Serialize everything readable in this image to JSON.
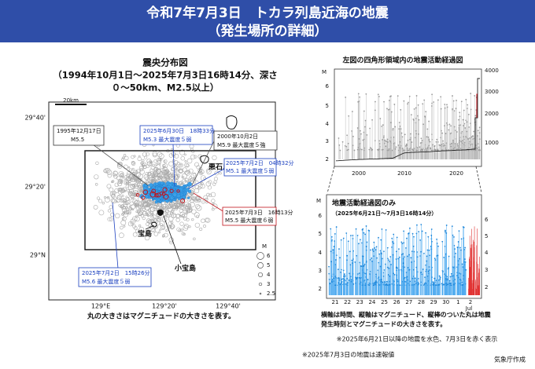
{
  "header": {
    "title": "令和7年7月3日　トカラ列島近海の地震",
    "subtitle": "（発生場所の詳細）"
  },
  "map": {
    "title": [
      "震央分布図",
      "（1994年10月1日～2025年7月3日16時14分、深さ",
      "０～50km、M2.5以上）"
    ],
    "scale": "20km",
    "lat_labels": [
      "29°40'",
      "29°20'",
      "29°N"
    ],
    "lon_labels": [
      "129°E",
      "129°20'",
      "129°40'"
    ],
    "islands": [
      "悪石島",
      "宝島",
      "小宝島"
    ],
    "annotations": [
      {
        "lines": [
          "1995年12月17日",
          "M5.5"
        ]
      },
      {
        "lines": [
          "2025年6月30日　18時33分",
          "M5.3 最大震度５弱"
        ]
      },
      {
        "lines": [
          "2000年10月2日",
          "M5.9 最大震度５強"
        ]
      },
      {
        "lines": [
          "2025年7月2日　04時32分",
          "M5.1 最大震度５弱"
        ]
      },
      {
        "lines": [
          "2025年7月3日　16時13分",
          "M5.5 最大震度６弱"
        ]
      },
      {
        "lines": [
          "2025年7月2日　15時26分",
          "M5.6 最大震度５弱"
        ]
      }
    ],
    "legend_title": "M",
    "legend_labels": [
      "6",
      "5",
      "4",
      "3",
      "2.5"
    ],
    "caption": "丸の大きさはマグニチュードの大きさを表す。"
  },
  "long_chart": {
    "title": "左図の四角形領域内の地震活動経過図",
    "y_label": "M",
    "y_ticks": [
      "6",
      "5",
      "4",
      "3",
      "2"
    ],
    "y2_ticks": [
      "4000",
      "3000",
      "2000",
      "1000"
    ],
    "x_ticks": [
      "2000",
      "2010",
      "2020"
    ]
  },
  "short_chart": {
    "title": "地震活動経過図のみ",
    "subtitle": "（2025年6月21日～7月3日16時14分）",
    "y_label": "M",
    "y_ticks": [
      "6",
      "5",
      "4",
      "3",
      "2"
    ],
    "y2_ticks": [
      "6",
      "5",
      "4",
      "3",
      "2"
    ],
    "x_ticks": [
      "21",
      "22",
      "23",
      "24",
      "25",
      "26",
      "27",
      "28",
      "29",
      "30",
      "1",
      "2"
    ],
    "month_label": "Jul"
  },
  "notes": [
    "横軸は時間、縦軸はマグニチュード、縦棒のついた丸は地震",
    "発生時刻とマグニチュードの大きさを表す。",
    "※2025年6月21日以降の地震を水色、7月3日を赤く表示",
    "※2025年7月3日の地震は速報値"
  ],
  "footer": "気象庁作成"
}
